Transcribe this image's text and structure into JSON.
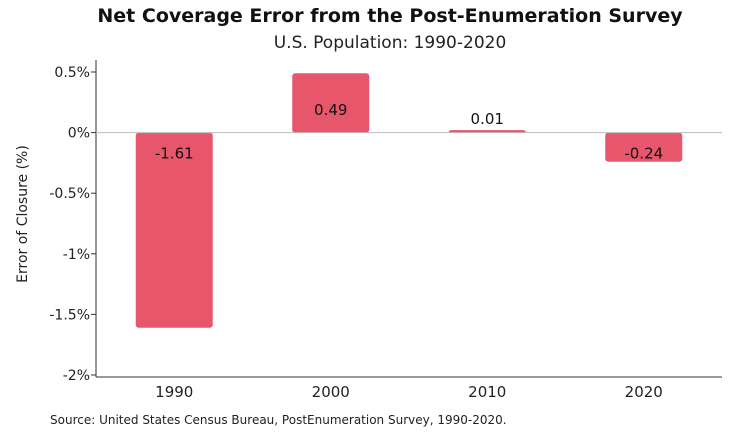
{
  "chart_data": {
    "type": "bar",
    "title": "Net Coverage Error from the Post-Enumeration Survey",
    "subtitle": "U.S. Population: 1990-2020",
    "ylabel": "Error of Closure (%)",
    "xlabel": "",
    "categories": [
      "1990",
      "2000",
      "2010",
      "2020"
    ],
    "values": [
      -1.61,
      0.49,
      0.01,
      -0.24
    ],
    "value_labels": [
      "-1.61",
      "0.49",
      "0.01",
      "-0.24"
    ],
    "ylim": [
      -2,
      0.5
    ],
    "yticks": [
      0.5,
      0,
      -0.5,
      -1,
      -1.5,
      -2
    ],
    "ytick_labels": [
      "0.5%",
      "0%",
      "-0.5%",
      "-1%",
      "-1.5%",
      "-2%"
    ],
    "bar_color": "#e8566c",
    "grid": false,
    "legend": "none",
    "source": "Source: United States Census Bureau, PostEnumeration Survey, 1990-2020."
  }
}
